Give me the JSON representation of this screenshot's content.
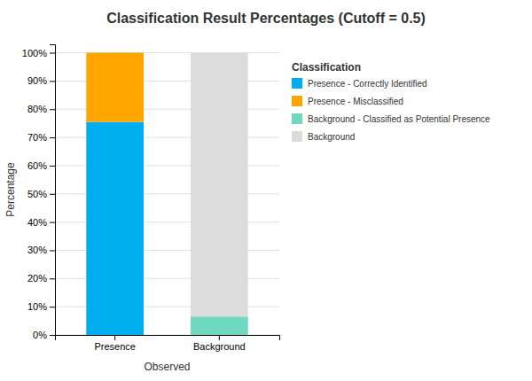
{
  "chart_data": {
    "type": "bar",
    "title": "Classification Result Percentages (Cutoff = 0.5)",
    "xlabel": "Observed",
    "ylabel": "Percentage",
    "categories": [
      "Presence",
      "Background"
    ],
    "series": [
      {
        "name": "Presence - Correctly Identified",
        "color": "#00ADEF",
        "values": [
          75.5,
          0
        ]
      },
      {
        "name": "Presence - Misclassified",
        "color": "#FFA500",
        "values": [
          24.5,
          0
        ]
      },
      {
        "name": "Background - Classified as Potential Presence",
        "color": "#70D8C0",
        "values": [
          0,
          6.5
        ]
      },
      {
        "name": "Background",
        "color": "#DCDCDC",
        "values": [
          0,
          93.5
        ]
      }
    ],
    "stacked": true,
    "ylim": [
      0,
      103
    ],
    "yticks": [
      {
        "value": 0,
        "label": "0%"
      },
      {
        "value": 10,
        "label": "10%"
      },
      {
        "value": 20,
        "label": "20%"
      },
      {
        "value": 30,
        "label": "30%"
      },
      {
        "value": 40,
        "label": "40%"
      },
      {
        "value": 50,
        "label": "50%"
      },
      {
        "value": 60,
        "label": "60%"
      },
      {
        "value": 70,
        "label": "70%"
      },
      {
        "value": 80,
        "label": "80%"
      },
      {
        "value": 90,
        "label": "90%"
      },
      {
        "value": 100,
        "label": "100%"
      }
    ],
    "grid": true,
    "legend": "right",
    "legend_title": "Classification"
  }
}
